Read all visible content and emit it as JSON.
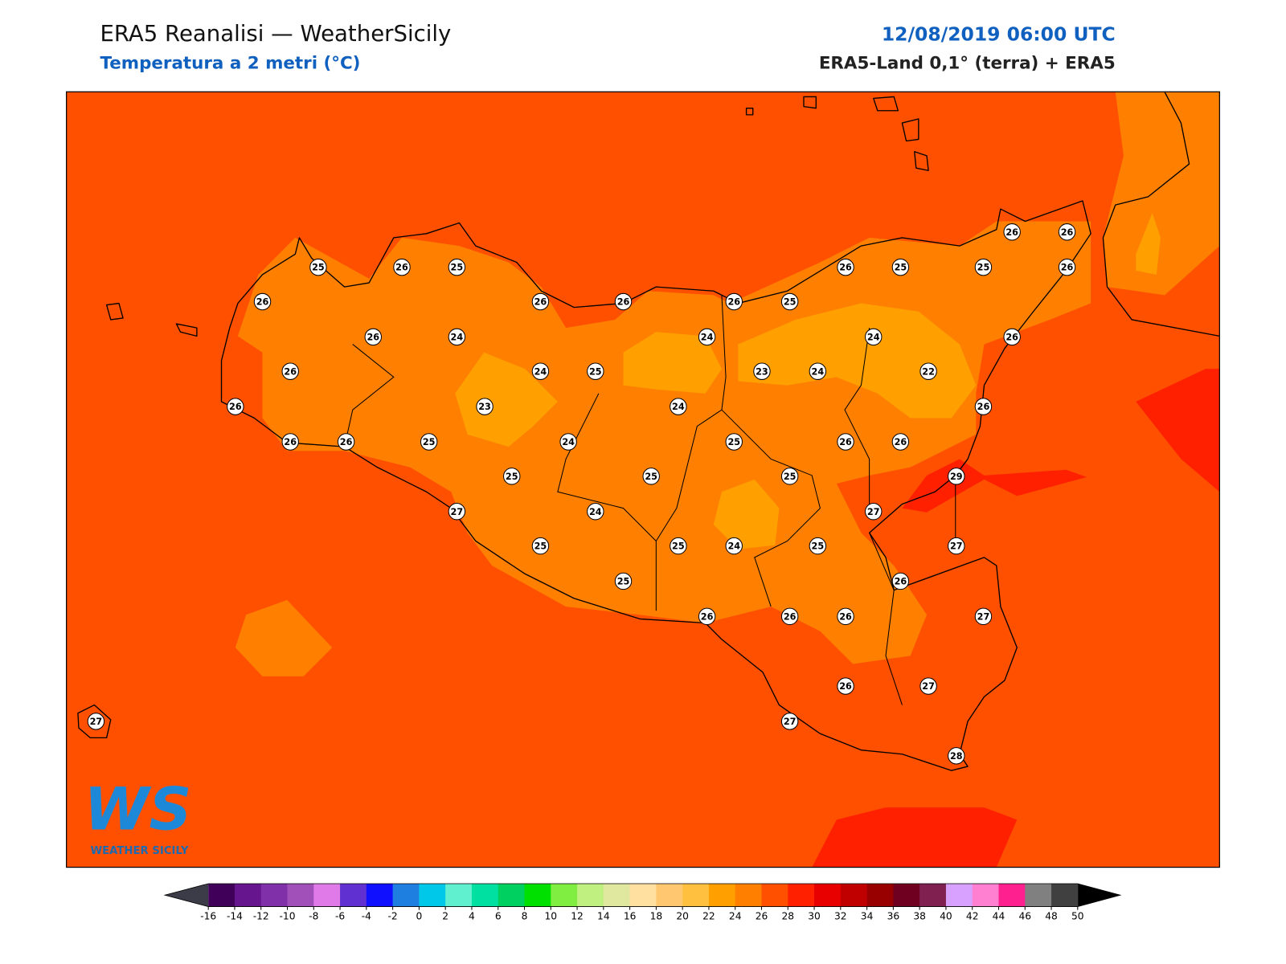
{
  "header": {
    "title": "ERA5 Reanalisi — WeatherSicily",
    "subtitle": "Temperatura a 2 metri (°C)",
    "datetime": "12/08/2019 06:00 UTC",
    "source": "ERA5-Land 0,1° (terra) + ERA5"
  },
  "map": {
    "stations": [
      25,
      26,
      25,
      26,
      26,
      26,
      26,
      24,
      26,
      24,
      25,
      26,
      23,
      26,
      26,
      25,
      24,
      25,
      25,
      27,
      24,
      25,
      25,
      25,
      24,
      24,
      26,
      25,
      23,
      24,
      25,
      25,
      24,
      25,
      26,
      26,
      26,
      26,
      25,
      25,
      26,
      26,
      26,
      24,
      26,
      22,
      26,
      26,
      26,
      29,
      27,
      27,
      26,
      27,
      26,
      27,
      27,
      28,
      27
    ]
  },
  "colorbar": {
    "ticks": [
      -16,
      -14,
      -12,
      -10,
      -8,
      -6,
      -4,
      -2,
      0,
      2,
      4,
      6,
      8,
      10,
      12,
      14,
      16,
      18,
      20,
      22,
      24,
      26,
      28,
      30,
      32,
      34,
      36,
      38,
      40,
      42,
      44,
      46,
      48,
      50
    ],
    "colors": [
      "#40005a",
      "#66158f",
      "#8030a8",
      "#a050b8",
      "#e07ae8",
      "#6030d0",
      "#1010ff",
      "#1e7fe0",
      "#00c8e8",
      "#60f0d0",
      "#00e0a0",
      "#00d060",
      "#00e000",
      "#80ee40",
      "#c0f080",
      "#e0e8a0",
      "#ffe0a0",
      "#ffc870",
      "#ffc040",
      "#ffa000",
      "#ff8000",
      "#ff5000",
      "#ff2000",
      "#e80000",
      "#c00000",
      "#980000",
      "#700020",
      "#802050",
      "#d8a0ff",
      "#ff80d0",
      "#ff2090",
      "#808080",
      "#404040"
    ],
    "under_color": "#3c3c48",
    "over_color": "#000000"
  },
  "logo": {
    "mark": "WS",
    "text": "WEATHER SICILY"
  }
}
